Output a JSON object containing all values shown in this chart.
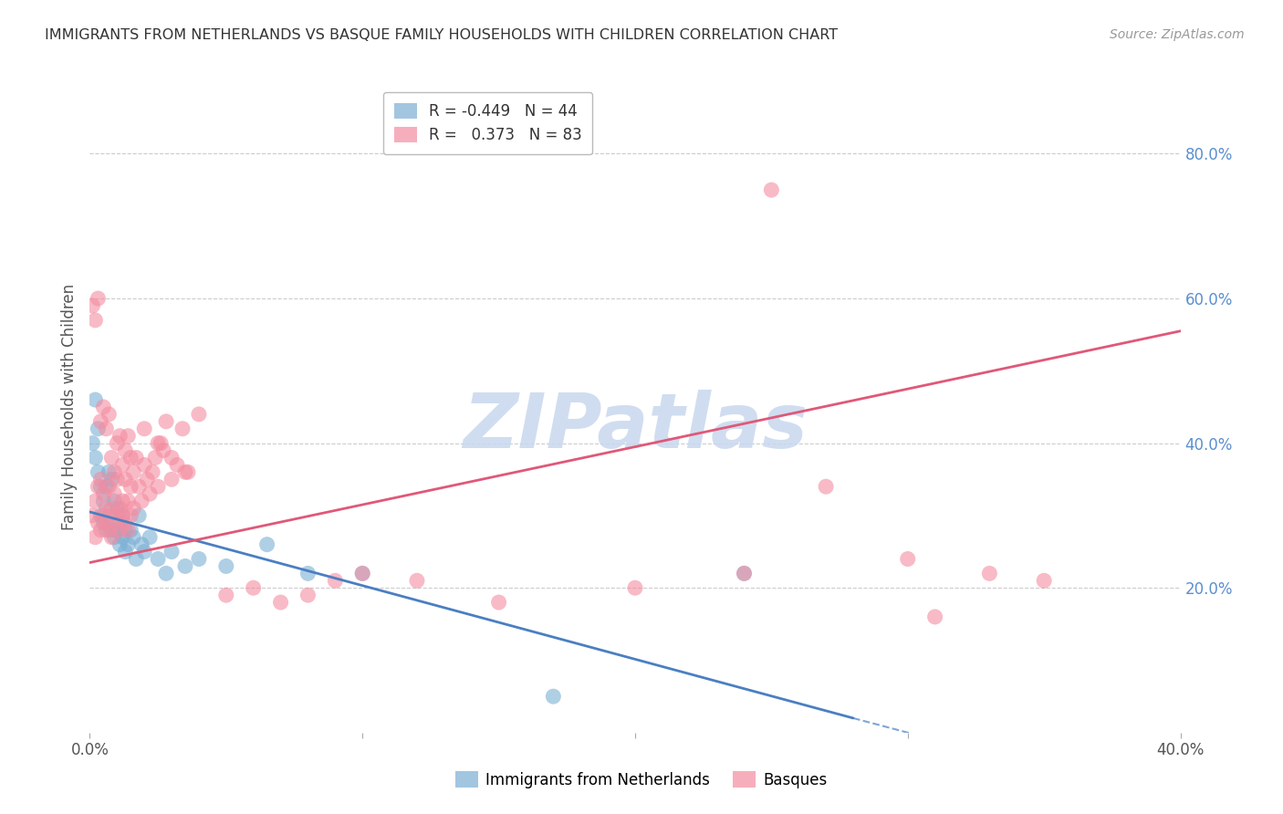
{
  "title": "IMMIGRANTS FROM NETHERLANDS VS BASQUE FAMILY HOUSEHOLDS WITH CHILDREN CORRELATION CHART",
  "source": "Source: ZipAtlas.com",
  "ylabel_left": "Family Households with Children",
  "xlim": [
    0.0,
    0.4
  ],
  "ylim": [
    0.0,
    0.9
  ],
  "x_ticks": [
    0.0,
    0.1,
    0.2,
    0.3,
    0.4
  ],
  "x_tick_labels": [
    "0.0%",
    "",
    "",
    "",
    "40.0%"
  ],
  "y_ticks_right": [
    0.2,
    0.4,
    0.6,
    0.8
  ],
  "y_tick_labels_right": [
    "20.0%",
    "40.0%",
    "60.0%",
    "80.0%"
  ],
  "grid_color": "#cccccc",
  "background_color": "#ffffff",
  "title_color": "#333333",
  "source_color": "#999999",
  "blue_color": "#7bafd4",
  "pink_color": "#f48ca0",
  "blue_label": "Immigrants from Netherlands",
  "pink_label": "Basques",
  "blue_R": -0.449,
  "blue_N": 44,
  "pink_R": 0.373,
  "pink_N": 83,
  "watermark": "ZIPatlas",
  "watermark_color": "#c8d8ee",
  "blue_line_color": "#4a7fc1",
  "pink_line_color": "#e05878",
  "blue_scatter_x": [
    0.001,
    0.002,
    0.002,
    0.003,
    0.003,
    0.004,
    0.004,
    0.005,
    0.005,
    0.006,
    0.006,
    0.007,
    0.007,
    0.008,
    0.008,
    0.009,
    0.009,
    0.01,
    0.01,
    0.011,
    0.011,
    0.012,
    0.012,
    0.013,
    0.013,
    0.014,
    0.015,
    0.016,
    0.017,
    0.018,
    0.019,
    0.02,
    0.022,
    0.025,
    0.028,
    0.03,
    0.035,
    0.04,
    0.05,
    0.065,
    0.08,
    0.1,
    0.17,
    0.24
  ],
  "blue_scatter_y": [
    0.4,
    0.38,
    0.46,
    0.42,
    0.36,
    0.34,
    0.3,
    0.32,
    0.29,
    0.34,
    0.28,
    0.36,
    0.3,
    0.28,
    0.35,
    0.32,
    0.27,
    0.31,
    0.28,
    0.29,
    0.26,
    0.3,
    0.27,
    0.28,
    0.25,
    0.26,
    0.28,
    0.27,
    0.24,
    0.3,
    0.26,
    0.25,
    0.27,
    0.24,
    0.22,
    0.25,
    0.23,
    0.24,
    0.23,
    0.26,
    0.22,
    0.22,
    0.05,
    0.22
  ],
  "pink_scatter_x": [
    0.001,
    0.002,
    0.002,
    0.003,
    0.003,
    0.004,
    0.004,
    0.005,
    0.005,
    0.006,
    0.006,
    0.007,
    0.007,
    0.008,
    0.008,
    0.009,
    0.009,
    0.01,
    0.01,
    0.011,
    0.011,
    0.012,
    0.012,
    0.013,
    0.013,
    0.014,
    0.014,
    0.015,
    0.015,
    0.016,
    0.016,
    0.017,
    0.018,
    0.019,
    0.02,
    0.021,
    0.022,
    0.023,
    0.024,
    0.025,
    0.026,
    0.027,
    0.028,
    0.03,
    0.032,
    0.034,
    0.036,
    0.04,
    0.05,
    0.06,
    0.07,
    0.08,
    0.09,
    0.1,
    0.12,
    0.15,
    0.2,
    0.24,
    0.27,
    0.3,
    0.31,
    0.33,
    0.35,
    0.001,
    0.002,
    0.003,
    0.004,
    0.005,
    0.006,
    0.007,
    0.008,
    0.009,
    0.01,
    0.011,
    0.012,
    0.013,
    0.014,
    0.015,
    0.02,
    0.025,
    0.03,
    0.035,
    0.25
  ],
  "pink_scatter_y": [
    0.3,
    0.32,
    0.27,
    0.34,
    0.29,
    0.28,
    0.35,
    0.3,
    0.33,
    0.29,
    0.31,
    0.34,
    0.28,
    0.31,
    0.27,
    0.33,
    0.29,
    0.3,
    0.35,
    0.31,
    0.28,
    0.32,
    0.3,
    0.29,
    0.35,
    0.32,
    0.28,
    0.34,
    0.3,
    0.36,
    0.31,
    0.38,
    0.34,
    0.32,
    0.37,
    0.35,
    0.33,
    0.36,
    0.38,
    0.34,
    0.4,
    0.39,
    0.43,
    0.35,
    0.37,
    0.42,
    0.36,
    0.44,
    0.19,
    0.2,
    0.18,
    0.19,
    0.21,
    0.22,
    0.21,
    0.18,
    0.2,
    0.22,
    0.34,
    0.24,
    0.16,
    0.22,
    0.21,
    0.59,
    0.57,
    0.6,
    0.43,
    0.45,
    0.42,
    0.44,
    0.38,
    0.36,
    0.4,
    0.41,
    0.37,
    0.39,
    0.41,
    0.38,
    0.42,
    0.4,
    0.38,
    0.36,
    0.75
  ]
}
